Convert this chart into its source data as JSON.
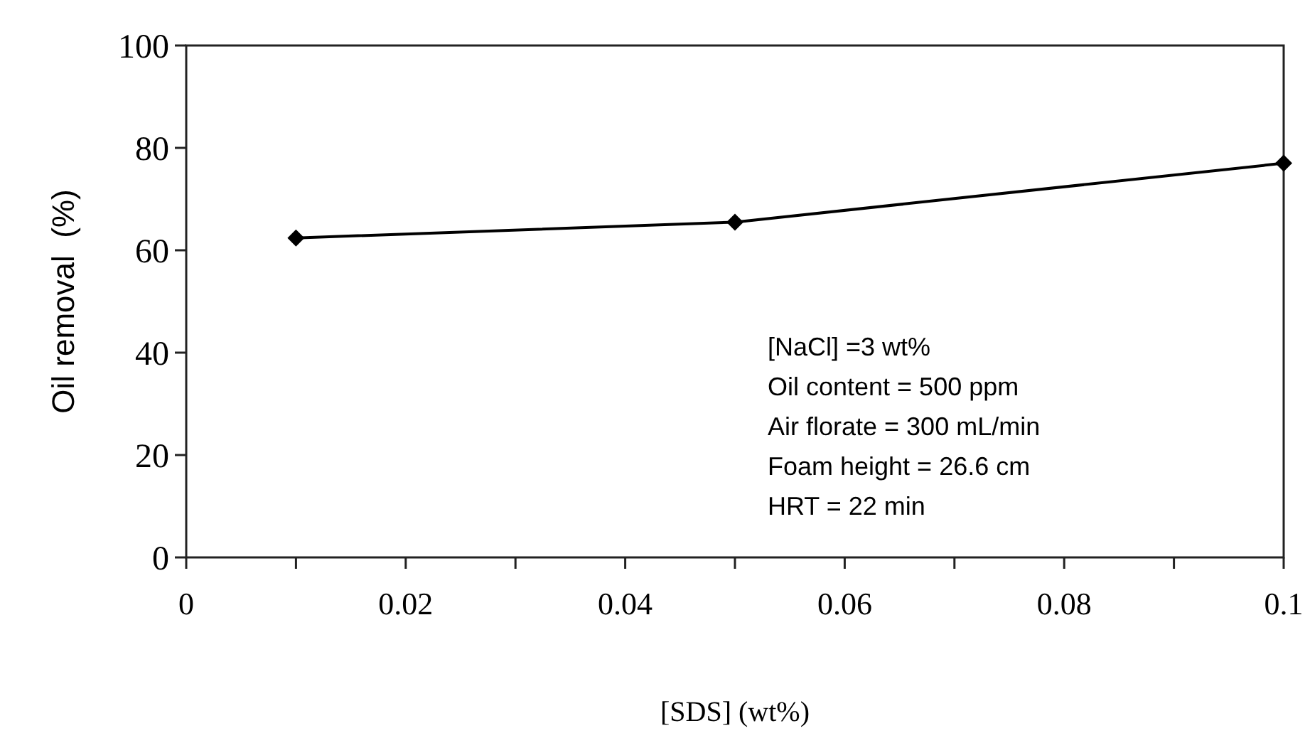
{
  "chart_data": {
    "type": "line",
    "xlabel": "[SDS] (wt%)",
    "ylabel": "Oil removal  (%)",
    "x": [
      0.01,
      0.05,
      0.1
    ],
    "series": [
      {
        "color": "#000000",
        "values": [
          62.4,
          65.5,
          77
        ]
      }
    ],
    "xlim": [
      0,
      0.1
    ],
    "ylim": [
      0,
      100
    ],
    "xticks": [
      0,
      {
        "value": 0.01,
        "label": null
      },
      0.02,
      {
        "value": 0.03,
        "label": null
      },
      0.04,
      {
        "value": 0.05,
        "label": null
      },
      0.06,
      {
        "value": 0.07,
        "label": null
      },
      0.08,
      {
        "value": 0.09,
        "label": null
      },
      0.1
    ],
    "yticks": [
      0,
      20,
      40,
      60,
      80,
      100
    ],
    "marker": "diamond",
    "line_style": "solid",
    "grid": false,
    "annotations": [
      "[NaCl] =3 wt%",
      "Oil content = 500 ppm",
      "Air florate = 300 mL/min",
      "Foam height = 26.6 cm",
      "HRT = 22 min"
    ]
  }
}
